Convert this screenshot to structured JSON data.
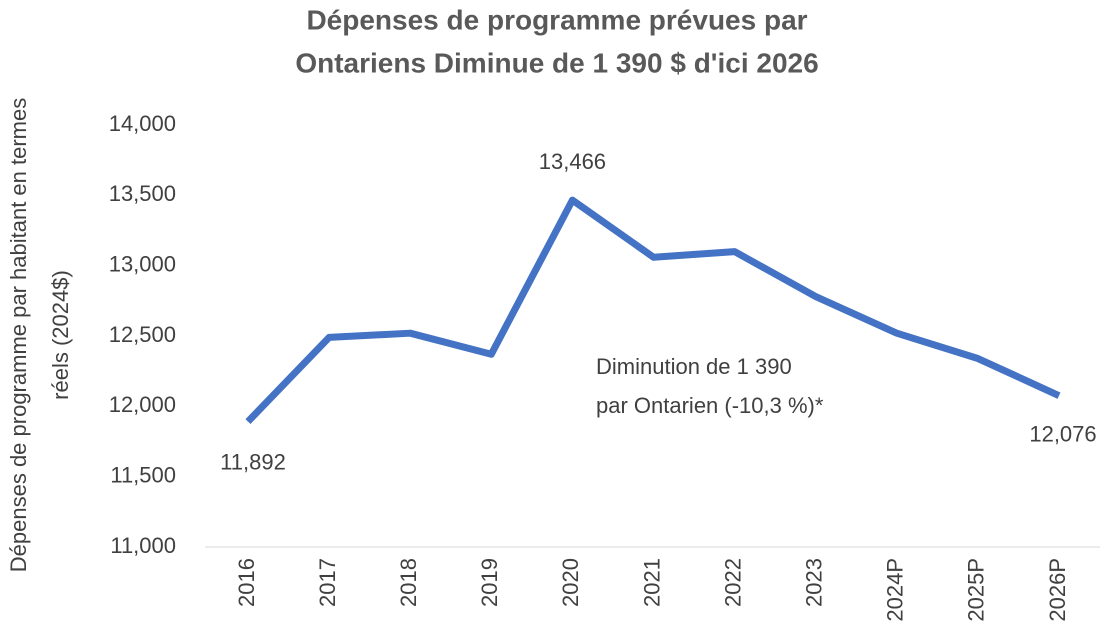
{
  "chart_data": {
    "type": "line",
    "title": [
      "Dépenses de programme prévues par",
      "Ontariens Diminue de 1 390 $ d'ici 2026"
    ],
    "y_label": [
      "Dépenses de programme par habitant en termes",
      "réels (2024$)"
    ],
    "annotation": [
      "Diminution de 1 390",
      "par Ontarien (-10,3 %)*"
    ],
    "categories": [
      "2016",
      "2017",
      "2018",
      "2019",
      "2020",
      "2021",
      "2022",
      "2023",
      "2024P",
      "2025P",
      "2026P"
    ],
    "series": [
      {
        "name": "Dépenses de programme par habitant",
        "color": "#4472c4",
        "values": [
          11892,
          12490,
          12520,
          12370,
          13466,
          13060,
          13100,
          12780,
          12520,
          12340,
          12076
        ],
        "value_labels": [
          "11,892",
          null,
          null,
          null,
          "13,466",
          null,
          null,
          null,
          null,
          null,
          "12,076"
        ]
      }
    ],
    "ylim": [
      11000,
      14000
    ],
    "yticks": [
      {
        "value": 11000,
        "label": "11,000"
      },
      {
        "value": 11500,
        "label": "11,500"
      },
      {
        "value": 12000,
        "label": "12,000"
      },
      {
        "value": 12500,
        "label": "12,500"
      },
      {
        "value": 13000,
        "label": "13,000"
      },
      {
        "value": 13500,
        "label": "13,500"
      },
      {
        "value": 14000,
        "label": "14,000"
      }
    ]
  }
}
